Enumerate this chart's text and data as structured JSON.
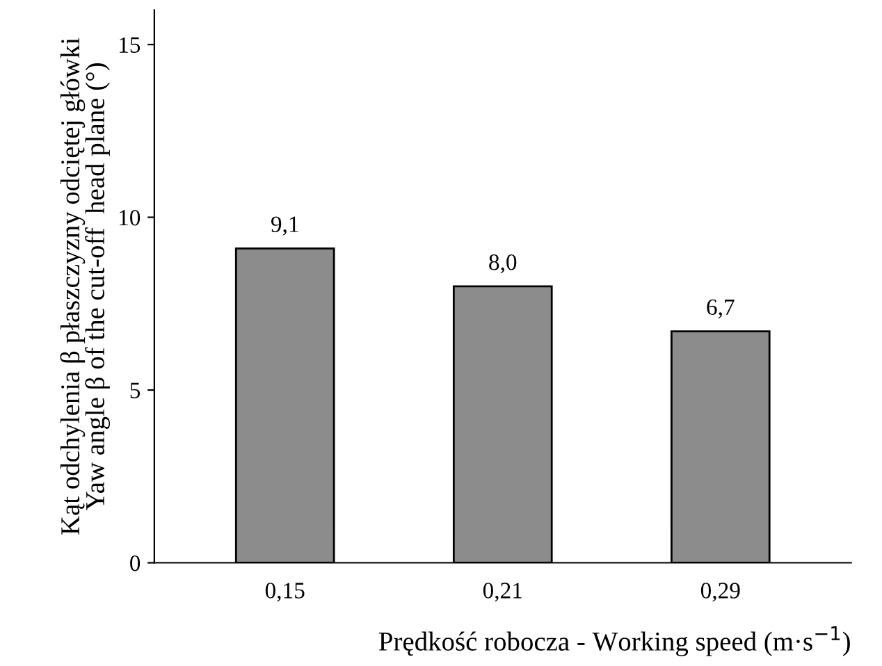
{
  "chart_data": {
    "type": "bar",
    "xlabel": "Prędkość robocza - Working speed (m·s$^{−1}$)",
    "ylabel": "Kąt odchylenia β płaszczyzny odciętej główki\nYaw angle β of the cut-off  head plane (°)",
    "categories": [
      "0,15",
      "0,21",
      "0,29"
    ],
    "values": [
      9.1,
      8.0,
      6.7
    ],
    "value_labels": [
      "9,1",
      "8,0",
      "6,7"
    ],
    "color": "#8c8c8c",
    "ylim": [
      0,
      16
    ],
    "yticks": [
      0,
      5,
      10,
      15
    ],
    "grid": false,
    "legend": false
  }
}
